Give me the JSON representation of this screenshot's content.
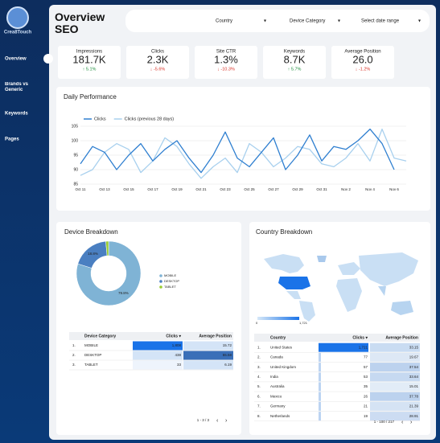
{
  "brand": "Crea8Touch",
  "nav": [
    "Overview",
    "Brands vs Generic",
    "Keywords",
    "Pages"
  ],
  "header": {
    "title": "Overview SEO",
    "filters": [
      "Country",
      "Device Category",
      "Select date range"
    ]
  },
  "kpis": [
    {
      "label": "Impressions",
      "value": "181.7K",
      "change": "↑ 5.1%",
      "color": "#1e8e3e"
    },
    {
      "label": "Clicks",
      "value": "2.3K",
      "change": "↓ -5.6%",
      "color": "#d93025"
    },
    {
      "label": "Site CTR",
      "value": "1.3%",
      "change": "↓ -10.3%",
      "color": "#d93025"
    },
    {
      "label": "Keywords",
      "value": "8.7K",
      "change": "↑ 5.7%",
      "color": "#1e8e3e"
    },
    {
      "label": "Average Position",
      "value": "26.0",
      "change": "↓ -1.2%",
      "color": "#d93025"
    }
  ],
  "daily": {
    "chart_data": {
      "type": "line",
      "title": "Daily Performance",
      "categories": [
        "Oct 11",
        null,
        "Oct 13",
        null,
        "Oct 15",
        null,
        "Oct 17",
        null,
        "Oct 19",
        null,
        "Oct 21",
        null,
        "Oct 23",
        null,
        "Oct 25",
        null,
        "Oct 27",
        null,
        "Oct 29",
        null,
        "Oct 31",
        null,
        "Nov 2",
        null,
        "Nov 4",
        null,
        "Nov 6",
        null
      ],
      "series": [
        {
          "name": "Clicks",
          "color": "#2f7fd0",
          "values": [
            92,
            98,
            96,
            90,
            95,
            99,
            93,
            97,
            100,
            94,
            89,
            95,
            103,
            94,
            91,
            96,
            101,
            90,
            95,
            102,
            93,
            98,
            97,
            100,
            104,
            99,
            90,
            null
          ]
        },
        {
          "name": "Clicks (previous 28 days)",
          "color": "#a8d0ee",
          "values": [
            88,
            90,
            96,
            99,
            97,
            89,
            93,
            101,
            98,
            92,
            87,
            91,
            94,
            89,
            99,
            96,
            91,
            94,
            98,
            97,
            92,
            91,
            94,
            99,
            93,
            104,
            94,
            93
          ]
        }
      ],
      "ylim": [
        85,
        105
      ],
      "yticks": [
        85,
        90,
        95,
        100,
        105
      ],
      "grid": true
    }
  },
  "device": {
    "chart_data": {
      "type": "pie",
      "title": "Device Breakdown",
      "categories": [
        "MOBILE",
        "DESKTOP",
        "TABLET"
      ],
      "values": [
        79.8,
        18.8,
        1.4
      ],
      "value_labels": [
        "79.8%",
        "18.8%",
        null
      ],
      "colors": [
        "#7fb3d5",
        "#4a7fc1",
        "#9acd32"
      ]
    },
    "table": {
      "columns": [
        "Device Category",
        "Clicks ▾",
        "Average Position"
      ],
      "rows": [
        [
          "1.",
          "MOBILE",
          "1,808",
          "15.72"
        ],
        [
          "2.",
          "DESKTOP",
          "438",
          "55.58"
        ],
        [
          "3.",
          "TABLET",
          "33",
          "6.19"
        ]
      ],
      "pagination": "1 - 3 / 3"
    }
  },
  "country": {
    "title": "Country Breakdown",
    "scale": [
      "0",
      "1,721"
    ],
    "table": {
      "columns": [
        "Country",
        "Clicks ▾",
        "Average Position"
      ],
      "rows": [
        [
          "1.",
          "United States",
          "1,721",
          "33.15"
        ],
        [
          "2.",
          "Canada",
          "77",
          "19.67"
        ],
        [
          "3.",
          "United Kingdom",
          "57",
          "37.54"
        ],
        [
          "4.",
          "India",
          "53",
          "33.64"
        ],
        [
          "5.",
          "Australia",
          "35",
          "15.01"
        ],
        [
          "6.",
          "Mexico",
          "26",
          "37.78"
        ],
        [
          "7.",
          "Germany",
          "21",
          "21.39"
        ],
        [
          "8.",
          "Netherlands",
          "19",
          "28.91"
        ]
      ],
      "pagination": "1 - 100 / 217"
    }
  }
}
